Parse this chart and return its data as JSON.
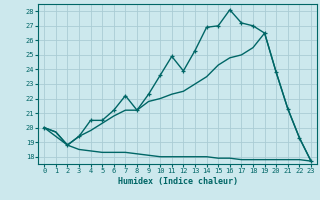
{
  "background_color": "#cce8ed",
  "grid_color": "#aaccd4",
  "line_color": "#006666",
  "xlabel": "Humidex (Indice chaleur)",
  "xlim": [
    -0.5,
    23.5
  ],
  "ylim": [
    17.5,
    28.5
  ],
  "yticks": [
    18,
    19,
    20,
    21,
    22,
    23,
    24,
    25,
    26,
    27,
    28
  ],
  "xticks": [
    0,
    1,
    2,
    3,
    4,
    5,
    6,
    7,
    8,
    9,
    10,
    11,
    12,
    13,
    14,
    15,
    16,
    17,
    18,
    19,
    20,
    21,
    22,
    23
  ],
  "series": [
    {
      "x": [
        0,
        1,
        2,
        3,
        4,
        5,
        6,
        7,
        8,
        9,
        10,
        11,
        12,
        13,
        14,
        15,
        16,
        17,
        18,
        19,
        20,
        21,
        22,
        23
      ],
      "y": [
        20.0,
        19.7,
        18.8,
        18.5,
        18.4,
        18.3,
        18.3,
        18.3,
        18.2,
        18.1,
        18.0,
        18.0,
        18.0,
        18.0,
        18.0,
        17.9,
        17.9,
        17.8,
        17.8,
        17.8,
        17.8,
        17.8,
        17.8,
        17.7
      ],
      "marker": false,
      "linewidth": 1.0
    },
    {
      "x": [
        0,
        1,
        2,
        3,
        4,
        5,
        6,
        7,
        8,
        9,
        10,
        11,
        12,
        13,
        14,
        15,
        16,
        17,
        18,
        19,
        20,
        21,
        22,
        23
      ],
      "y": [
        20.0,
        19.7,
        18.8,
        19.4,
        19.8,
        20.3,
        20.8,
        21.2,
        21.2,
        21.8,
        22.0,
        22.3,
        22.5,
        23.0,
        23.5,
        24.3,
        24.8,
        25.0,
        25.5,
        26.5,
        23.8,
        21.3,
        19.3,
        17.7
      ],
      "marker": false,
      "linewidth": 1.0
    },
    {
      "x": [
        0,
        2,
        3,
        4,
        5,
        6,
        7,
        8,
        9,
        10,
        11,
        12,
        13,
        14,
        15,
        16,
        17,
        18,
        19,
        20,
        21,
        22,
        23
      ],
      "y": [
        20.0,
        18.8,
        19.4,
        20.5,
        20.5,
        21.2,
        22.2,
        21.2,
        22.3,
        23.6,
        24.9,
        23.9,
        25.3,
        26.9,
        27.0,
        28.1,
        27.2,
        27.0,
        26.5,
        23.8,
        21.3,
        19.3,
        17.7
      ],
      "marker": true,
      "linewidth": 1.0
    }
  ]
}
